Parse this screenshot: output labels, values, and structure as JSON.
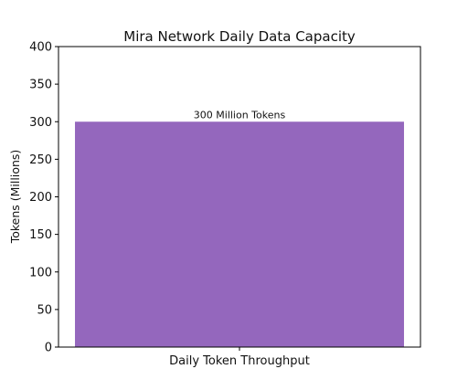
{
  "chart_data": {
    "type": "bar",
    "title": "Mira Network Daily Data Capacity",
    "xlabel": "",
    "ylabel": "Tokens (Millions)",
    "categories": [
      "Daily Token Throughput"
    ],
    "values": [
      300
    ],
    "data_labels": [
      "300 Million Tokens"
    ],
    "ylim": [
      0,
      400
    ],
    "yticks": [
      0,
      50,
      100,
      150,
      200,
      250,
      300,
      350,
      400
    ],
    "grid": false,
    "legend": "none",
    "bar_color": "#9467bd"
  }
}
